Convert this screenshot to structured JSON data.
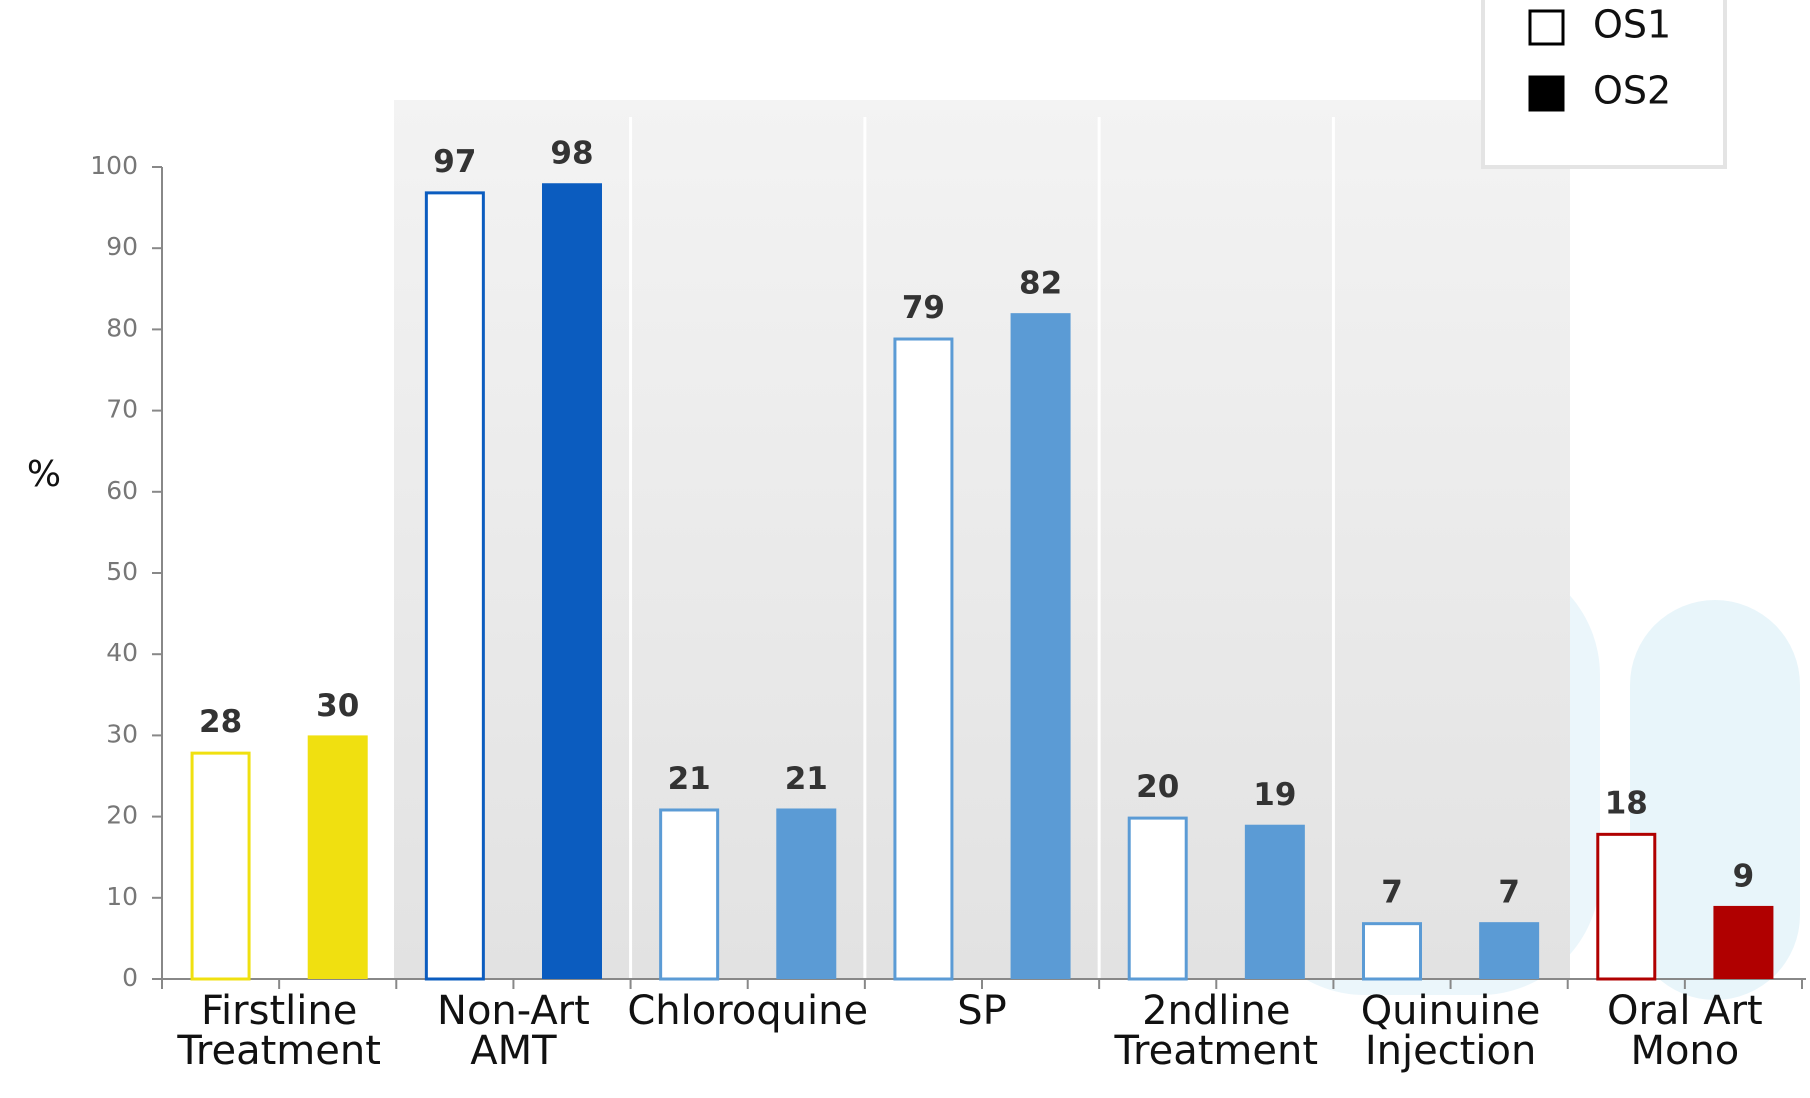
{
  "chart_data": {
    "type": "bar",
    "y_label": "%",
    "categories": [
      "Firstline Treatment",
      "Non-Art AMT",
      "Chloroquine",
      "SP",
      "2ndline Treatment",
      "Quinuine Injection",
      "Oral Art Mono"
    ],
    "category_colors": [
      "#f0e010",
      "#0b5cbf",
      "#5b9bd5",
      "#5b9bd5",
      "#5b9bd5",
      "#5b9bd5",
      "#b00000"
    ],
    "series": [
      {
        "name": "OS1",
        "color": "#ffffff",
        "style": "outline",
        "values": [
          28,
          97,
          21,
          79,
          20,
          7,
          18
        ]
      },
      {
        "name": "OS2",
        "color": "#000000",
        "style": "filled",
        "values": [
          30,
          98,
          21,
          82,
          19,
          7,
          9
        ]
      }
    ],
    "ylim": [
      0,
      100
    ],
    "yticks": [
      0,
      10,
      20,
      30,
      40,
      50,
      60,
      70,
      80,
      90,
      100
    ],
    "legend": "top-right"
  }
}
